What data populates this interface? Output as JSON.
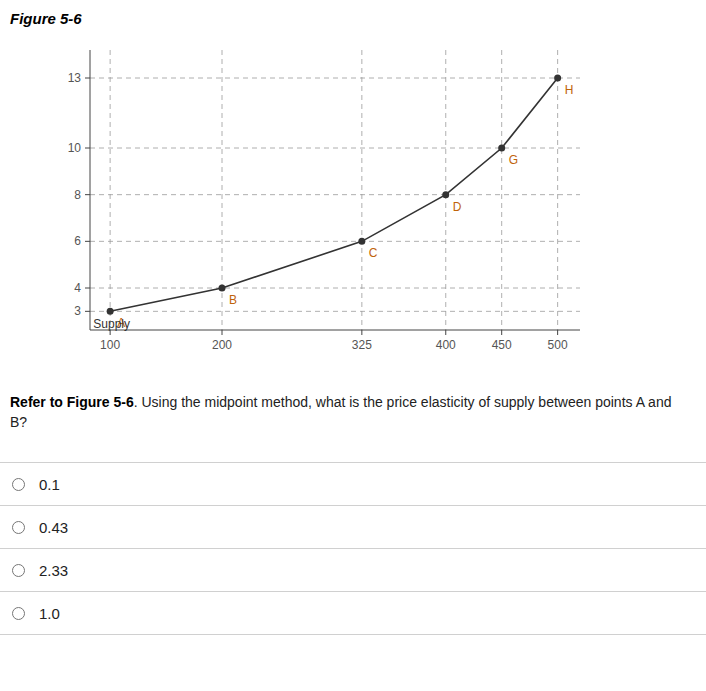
{
  "chart_data": {
    "type": "line",
    "title": "Figure 5-6",
    "x": [
      100,
      200,
      325,
      400,
      450,
      500
    ],
    "values": [
      3,
      4,
      6,
      8,
      10,
      13
    ],
    "color": "#333333",
    "marker": "circle",
    "point_labels": [
      "A",
      "B",
      "C",
      "D",
      "G",
      "H"
    ],
    "annotations": [
      {
        "text": "Supply",
        "x": 85,
        "y": 2.85
      }
    ],
    "xlim": [
      82,
      520
    ],
    "ylim": [
      2.2,
      14.2
    ],
    "xticks": [
      100,
      200,
      325,
      400,
      450,
      500
    ],
    "yticks": [
      3,
      4,
      6,
      8,
      10,
      13
    ],
    "grid": true
  },
  "question": [
    "Refer to Figure 5-6",
    ". Using the midpoint method, what is the price elasticity of supply between points A and B?"
  ],
  "options": [
    "0.1",
    "0.43",
    "2.33",
    "1.0"
  ]
}
